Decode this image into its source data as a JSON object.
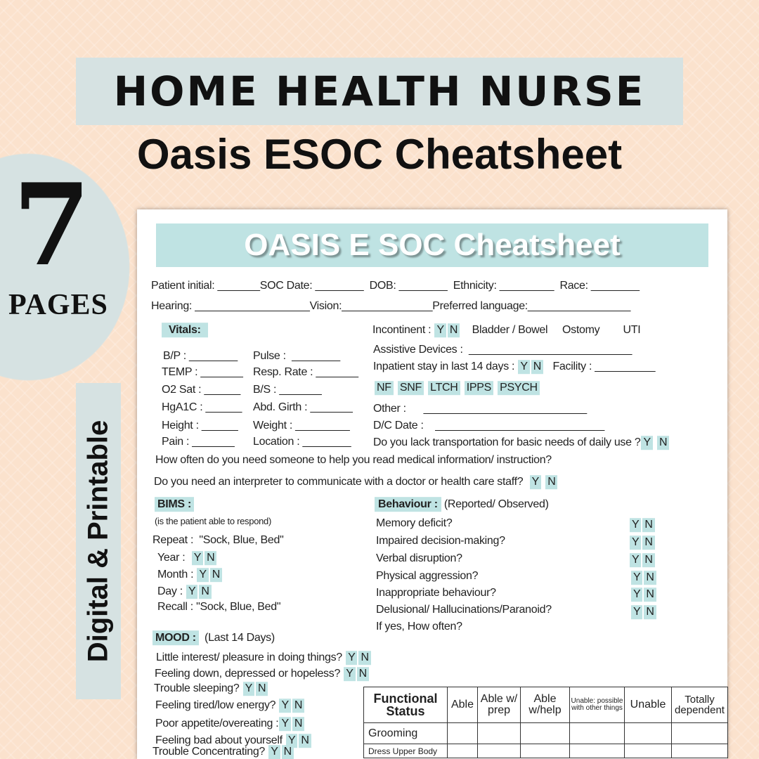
{
  "banner": {
    "title": "HOME HEALTH NURSE",
    "subtitle": "Oasis ESOC Cheatsheet"
  },
  "badge": {
    "count": "7",
    "unit": "PAGES"
  },
  "side_label": "Digital & Printable",
  "colors": {
    "background": "#fbe2cd",
    "panel": "#d6e2e2",
    "highlight": "#bfe3e3"
  },
  "yn": {
    "y": "Y",
    "n": "N"
  },
  "sheet": {
    "title": "OASIS E SOC Cheatsheet",
    "header": [
      "Patient initial: _______SOC Date: ________  DOB: ________  Ethnicity: _________  Race: ________",
      "Hearing: ___________________Vision:_______________Preferred language:_________________"
    ],
    "vitals": {
      "label": "Vitals:",
      "fields": [
        "B/P : ________",
        "Pulse :  ________",
        "TEMP : _______",
        "Resp. Rate : _______",
        "O2 Sat : ______",
        "B/S : _______",
        "HgA1C : ______",
        "Abd. Girth : _______",
        "Height : ______",
        "Weight : _________",
        "Pain : _______",
        "Location : ________"
      ]
    },
    "right": {
      "incontinent": "Incontinent :",
      "incontinent_opts": [
        "Bladder / Bowel",
        "Ostomy",
        "UTI"
      ],
      "assistive": "Assistive Devices :  ___________________________",
      "inpatient": "Inpatient stay in last 14 days :",
      "facility": "Facility : __________",
      "facilities": [
        "NF",
        "SNF",
        "LTCH",
        "IPPS",
        "PSYCH"
      ],
      "other": "Other :      ___________________________",
      "dc_date": "D/C Date :    ____________________________",
      "transport": "Do you lack transportation for basic needs of daily use ?"
    },
    "questions": [
      "How often do you need someone to help you read medical information/ instruction?",
      "Do you need an interpreter to communicate with a doctor or health care staff?"
    ],
    "bims": {
      "label": "BIMS :",
      "note": "(is the patient able to respond)",
      "repeat": "Repeat :  \"Sock, Blue, Bed\"",
      "year": "Year :",
      "month": "Month :",
      "day": "Day :",
      "recall": "Recall : \"Sock, Blue, Bed\""
    },
    "behaviour": {
      "label": "Behaviour :",
      "note": "(Reported/ Observed)",
      "items": [
        "Memory deficit?",
        "Impaired decision-making?",
        "Verbal disruption?",
        "Physical aggression?",
        "Inappropriate behaviour?",
        "Delusional/ Hallucinations/Paranoid?"
      ],
      "followup": "If yes, How often?"
    },
    "mood": {
      "label": "MOOD :",
      "note": "(Last 14 Days)",
      "items": [
        "Little interest/ pleasure in doing things?",
        "Feeling down, depressed or hopeless?",
        "Trouble sleeping?",
        "Feeling tired/low energy?",
        "Poor appetite/overeating :",
        "Feeling bad about yourself",
        "Trouble Concentrating?"
      ]
    },
    "functional": {
      "header": [
        "Functional Status",
        "Able",
        "Able w/ prep",
        "Able w/help",
        "Unable: possible with other things",
        "Unable",
        "Totally dependent"
      ],
      "rows": [
        "Grooming",
        "Dress Upper Body"
      ]
    }
  }
}
